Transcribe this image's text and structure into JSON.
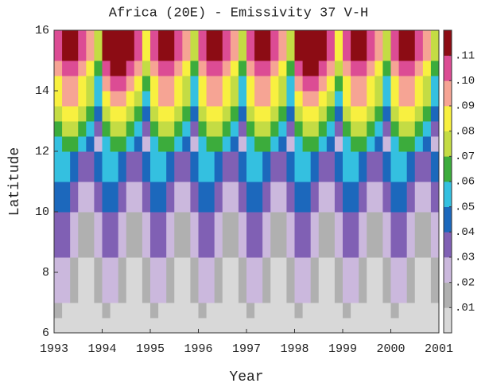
{
  "chart_data": {
    "type": "heatmap",
    "title": "Africa (20E) - Emissivity 37 V-H",
    "x_label": "Year",
    "y_label": "Latitude",
    "xlim": [
      1993,
      2001
    ],
    "ylim": [
      6,
      16
    ],
    "xticks": [
      1993,
      1994,
      1995,
      1996,
      1997,
      1998,
      1999,
      2000,
      2001
    ],
    "yticks": [
      6,
      8,
      10,
      12,
      14,
      16
    ],
    "levels": [
      0,
      0.01,
      0.02,
      0.03,
      0.04,
      0.05,
      0.06,
      0.07,
      0.08,
      0.09,
      0.1,
      0.11,
      0.12
    ],
    "colors": [
      "#d8d8d8",
      "#b0b0b0",
      "#cbb8dd",
      "#8060b4",
      "#1c68bc",
      "#34c0e0",
      "#3cac3c",
      "#c4dc44",
      "#f8f040",
      "#f6a494",
      "#dc4c94",
      "#8c0c14"
    ],
    "colorbar_ticks": [
      {
        "value": 0.01,
        "label": ".01"
      },
      {
        "value": 0.02,
        "label": ".02"
      },
      {
        "value": 0.03,
        "label": ".03"
      },
      {
        "value": 0.04,
        "label": ".04"
      },
      {
        "value": 0.05,
        "label": ".05"
      },
      {
        "value": 0.06,
        "label": ".06"
      },
      {
        "value": 0.07,
        "label": ".07"
      },
      {
        "value": 0.08,
        "label": ".08"
      },
      {
        "value": 0.09,
        "label": ".09"
      },
      {
        "value": 0.1,
        "label": ".10"
      },
      {
        "value": 0.11,
        "label": ".11"
      }
    ],
    "z": [
      [
        0.005,
        0.005,
        0.005,
        0.005,
        0.005,
        0.005,
        0.005,
        0.005,
        0.005,
        0.005,
        0.005,
        0.005,
        0.005,
        0.005,
        0.005,
        0.005,
        0.005,
        0.005,
        0.005,
        0.005,
        0.005,
        0.005,
        0.005,
        0.005,
        0.005,
        0.005,
        0.005,
        0.005,
        0.005,
        0.005,
        0.005,
        0.005,
        0.005,
        0.005,
        0.005,
        0.005,
        0.005,
        0.005,
        0.005,
        0.005,
        0.005,
        0.005,
        0.005,
        0.005,
        0.005,
        0.005,
        0.005,
        0.005
      ],
      [
        0.015,
        0.005,
        0.005,
        0.005,
        0.005,
        0.005,
        0.015,
        0.005,
        0.005,
        0.005,
        0.005,
        0.005,
        0.015,
        0.005,
        0.005,
        0.005,
        0.005,
        0.005,
        0.015,
        0.005,
        0.005,
        0.005,
        0.005,
        0.005,
        0.015,
        0.005,
        0.005,
        0.005,
        0.005,
        0.005,
        0.015,
        0.005,
        0.005,
        0.005,
        0.005,
        0.005,
        0.015,
        0.005,
        0.005,
        0.005,
        0.005,
        0.005,
        0.015,
        0.005,
        0.005,
        0.005,
        0.005,
        0.005
      ],
      [
        0.025,
        0.025,
        0.015,
        0.005,
        0.005,
        0.015,
        0.025,
        0.025,
        0.015,
        0.005,
        0.005,
        0.015,
        0.025,
        0.025,
        0.015,
        0.005,
        0.005,
        0.015,
        0.025,
        0.025,
        0.015,
        0.005,
        0.005,
        0.015,
        0.025,
        0.025,
        0.015,
        0.005,
        0.005,
        0.015,
        0.025,
        0.025,
        0.015,
        0.005,
        0.005,
        0.015,
        0.025,
        0.025,
        0.015,
        0.005,
        0.005,
        0.015,
        0.025,
        0.025,
        0.015,
        0.005,
        0.005,
        0.015
      ],
      [
        0.025,
        0.025,
        0.015,
        0.005,
        0.005,
        0.015,
        0.025,
        0.025,
        0.015,
        0.005,
        0.005,
        0.015,
        0.025,
        0.025,
        0.015,
        0.005,
        0.005,
        0.015,
        0.025,
        0.025,
        0.015,
        0.005,
        0.005,
        0.015,
        0.025,
        0.025,
        0.015,
        0.005,
        0.005,
        0.015,
        0.025,
        0.025,
        0.015,
        0.005,
        0.005,
        0.015,
        0.025,
        0.025,
        0.015,
        0.005,
        0.005,
        0.015,
        0.025,
        0.025,
        0.015,
        0.005,
        0.005,
        0.015
      ],
      [
        0.025,
        0.025,
        0.015,
        0.005,
        0.005,
        0.015,
        0.025,
        0.025,
        0.015,
        0.005,
        0.005,
        0.015,
        0.025,
        0.025,
        0.015,
        0.005,
        0.005,
        0.015,
        0.025,
        0.025,
        0.015,
        0.005,
        0.005,
        0.015,
        0.025,
        0.025,
        0.015,
        0.005,
        0.005,
        0.015,
        0.025,
        0.025,
        0.015,
        0.005,
        0.005,
        0.015,
        0.025,
        0.025,
        0.015,
        0.005,
        0.005,
        0.015,
        0.025,
        0.025,
        0.015,
        0.005,
        0.005,
        0.015
      ],
      [
        0.035,
        0.035,
        0.025,
        0.015,
        0.015,
        0.025,
        0.035,
        0.035,
        0.025,
        0.015,
        0.015,
        0.025,
        0.035,
        0.035,
        0.025,
        0.015,
        0.015,
        0.025,
        0.035,
        0.035,
        0.025,
        0.015,
        0.015,
        0.025,
        0.035,
        0.035,
        0.025,
        0.015,
        0.015,
        0.025,
        0.035,
        0.035,
        0.025,
        0.015,
        0.015,
        0.025,
        0.035,
        0.035,
        0.025,
        0.015,
        0.015,
        0.025,
        0.035,
        0.035,
        0.025,
        0.015,
        0.015,
        0.025
      ],
      [
        0.035,
        0.035,
        0.025,
        0.015,
        0.015,
        0.025,
        0.035,
        0.035,
        0.025,
        0.015,
        0.015,
        0.025,
        0.035,
        0.035,
        0.025,
        0.015,
        0.015,
        0.025,
        0.035,
        0.035,
        0.025,
        0.015,
        0.015,
        0.025,
        0.035,
        0.035,
        0.025,
        0.015,
        0.015,
        0.025,
        0.035,
        0.035,
        0.025,
        0.015,
        0.015,
        0.025,
        0.035,
        0.035,
        0.025,
        0.015,
        0.015,
        0.025,
        0.035,
        0.035,
        0.025,
        0.015,
        0.015,
        0.025
      ],
      [
        0.035,
        0.035,
        0.025,
        0.015,
        0.015,
        0.025,
        0.035,
        0.035,
        0.025,
        0.015,
        0.015,
        0.025,
        0.035,
        0.035,
        0.025,
        0.015,
        0.015,
        0.025,
        0.035,
        0.035,
        0.025,
        0.015,
        0.015,
        0.025,
        0.035,
        0.035,
        0.025,
        0.015,
        0.015,
        0.025,
        0.035,
        0.035,
        0.025,
        0.015,
        0.015,
        0.025,
        0.035,
        0.035,
        0.025,
        0.015,
        0.015,
        0.025,
        0.035,
        0.035,
        0.025,
        0.015,
        0.015,
        0.025
      ],
      [
        0.045,
        0.045,
        0.035,
        0.025,
        0.025,
        0.035,
        0.045,
        0.045,
        0.035,
        0.025,
        0.025,
        0.035,
        0.045,
        0.045,
        0.035,
        0.025,
        0.025,
        0.035,
        0.045,
        0.045,
        0.035,
        0.025,
        0.025,
        0.035,
        0.045,
        0.045,
        0.035,
        0.025,
        0.025,
        0.035,
        0.045,
        0.045,
        0.035,
        0.025,
        0.025,
        0.035,
        0.045,
        0.045,
        0.035,
        0.025,
        0.025,
        0.035,
        0.045,
        0.045,
        0.035,
        0.025,
        0.025,
        0.035
      ],
      [
        0.045,
        0.045,
        0.035,
        0.025,
        0.025,
        0.035,
        0.045,
        0.045,
        0.035,
        0.025,
        0.025,
        0.035,
        0.045,
        0.045,
        0.035,
        0.025,
        0.025,
        0.035,
        0.045,
        0.045,
        0.035,
        0.025,
        0.025,
        0.035,
        0.045,
        0.045,
        0.035,
        0.025,
        0.025,
        0.035,
        0.045,
        0.045,
        0.035,
        0.025,
        0.025,
        0.035,
        0.045,
        0.045,
        0.035,
        0.025,
        0.025,
        0.035,
        0.045,
        0.045,
        0.035,
        0.025,
        0.025,
        0.035
      ],
      [
        0.055,
        0.055,
        0.045,
        0.035,
        0.035,
        0.045,
        0.055,
        0.055,
        0.045,
        0.035,
        0.035,
        0.045,
        0.055,
        0.055,
        0.045,
        0.035,
        0.035,
        0.045,
        0.055,
        0.055,
        0.045,
        0.035,
        0.035,
        0.045,
        0.055,
        0.055,
        0.045,
        0.035,
        0.035,
        0.045,
        0.055,
        0.055,
        0.045,
        0.035,
        0.035,
        0.045,
        0.055,
        0.055,
        0.045,
        0.035,
        0.035,
        0.045,
        0.055,
        0.055,
        0.045,
        0.035,
        0.035,
        0.045
      ],
      [
        0.055,
        0.055,
        0.045,
        0.035,
        0.035,
        0.045,
        0.055,
        0.055,
        0.045,
        0.035,
        0.035,
        0.045,
        0.055,
        0.055,
        0.045,
        0.035,
        0.035,
        0.045,
        0.055,
        0.055,
        0.045,
        0.035,
        0.035,
        0.045,
        0.055,
        0.055,
        0.045,
        0.035,
        0.035,
        0.045,
        0.055,
        0.055,
        0.045,
        0.035,
        0.035,
        0.045,
        0.055,
        0.055,
        0.045,
        0.035,
        0.035,
        0.045,
        0.055,
        0.055,
        0.045,
        0.035,
        0.035,
        0.045
      ],
      [
        0.055,
        0.065,
        0.065,
        0.055,
        0.045,
        0.025,
        0.055,
        0.065,
        0.065,
        0.055,
        0.045,
        0.025,
        0.055,
        0.065,
        0.065,
        0.055,
        0.045,
        0.025,
        0.055,
        0.065,
        0.065,
        0.055,
        0.045,
        0.025,
        0.055,
        0.065,
        0.065,
        0.055,
        0.045,
        0.025,
        0.055,
        0.065,
        0.065,
        0.055,
        0.045,
        0.025,
        0.055,
        0.065,
        0.065,
        0.055,
        0.045,
        0.025,
        0.055,
        0.065,
        0.065,
        0.055,
        0.045,
        0.025
      ],
      [
        0.065,
        0.075,
        0.075,
        0.065,
        0.055,
        0.035,
        0.065,
        0.075,
        0.075,
        0.065,
        0.055,
        0.035,
        0.065,
        0.075,
        0.075,
        0.065,
        0.055,
        0.035,
        0.065,
        0.075,
        0.075,
        0.065,
        0.055,
        0.035,
        0.065,
        0.075,
        0.075,
        0.065,
        0.055,
        0.035,
        0.065,
        0.075,
        0.075,
        0.065,
        0.055,
        0.035,
        0.065,
        0.075,
        0.075,
        0.065,
        0.055,
        0.035,
        0.065,
        0.075,
        0.075,
        0.065,
        0.055,
        0.035
      ],
      [
        0.075,
        0.085,
        0.085,
        0.075,
        0.065,
        0.045,
        0.075,
        0.085,
        0.085,
        0.075,
        0.065,
        0.045,
        0.075,
        0.085,
        0.085,
        0.075,
        0.065,
        0.045,
        0.075,
        0.085,
        0.085,
        0.075,
        0.065,
        0.045,
        0.075,
        0.085,
        0.085,
        0.075,
        0.065,
        0.045,
        0.075,
        0.085,
        0.085,
        0.075,
        0.065,
        0.045,
        0.075,
        0.085,
        0.085,
        0.075,
        0.065,
        0.045,
        0.075,
        0.085,
        0.085,
        0.075,
        0.065,
        0.045
      ],
      [
        0.085,
        0.095,
        0.095,
        0.085,
        0.075,
        0.055,
        0.085,
        0.095,
        0.095,
        0.085,
        0.075,
        0.055,
        0.085,
        0.095,
        0.095,
        0.085,
        0.075,
        0.055,
        0.085,
        0.095,
        0.095,
        0.085,
        0.075,
        0.055,
        0.085,
        0.095,
        0.095,
        0.085,
        0.075,
        0.055,
        0.085,
        0.095,
        0.095,
        0.085,
        0.075,
        0.055,
        0.085,
        0.095,
        0.095,
        0.085,
        0.075,
        0.055,
        0.085,
        0.095,
        0.095,
        0.085,
        0.075,
        0.055
      ],
      [
        0.085,
        0.095,
        0.095,
        0.085,
        0.075,
        0.055,
        0.095,
        0.105,
        0.105,
        0.095,
        0.085,
        0.065,
        0.085,
        0.095,
        0.095,
        0.085,
        0.075,
        0.055,
        0.085,
        0.095,
        0.095,
        0.085,
        0.075,
        0.055,
        0.085,
        0.095,
        0.095,
        0.085,
        0.075,
        0.055,
        0.095,
        0.105,
        0.105,
        0.095,
        0.085,
        0.065,
        0.085,
        0.095,
        0.095,
        0.085,
        0.075,
        0.055,
        0.085,
        0.095,
        0.095,
        0.085,
        0.075,
        0.055
      ],
      [
        0.095,
        0.105,
        0.105,
        0.095,
        0.085,
        0.065,
        0.105,
        0.115,
        0.115,
        0.105,
        0.095,
        0.075,
        0.095,
        0.105,
        0.105,
        0.095,
        0.085,
        0.065,
        0.095,
        0.105,
        0.105,
        0.095,
        0.085,
        0.065,
        0.095,
        0.105,
        0.105,
        0.095,
        0.085,
        0.065,
        0.105,
        0.115,
        0.115,
        0.105,
        0.095,
        0.075,
        0.095,
        0.105,
        0.105,
        0.095,
        0.085,
        0.065,
        0.095,
        0.105,
        0.105,
        0.095,
        0.085,
        0.065
      ],
      [
        0.105,
        0.115,
        0.115,
        0.105,
        0.095,
        0.075,
        0.115,
        0.115,
        0.115,
        0.115,
        0.105,
        0.085,
        0.105,
        0.115,
        0.115,
        0.105,
        0.095,
        0.075,
        0.105,
        0.115,
        0.115,
        0.105,
        0.095,
        0.075,
        0.105,
        0.115,
        0.115,
        0.105,
        0.095,
        0.075,
        0.115,
        0.115,
        0.115,
        0.115,
        0.105,
        0.085,
        0.105,
        0.115,
        0.115,
        0.105,
        0.095,
        0.075,
        0.105,
        0.115,
        0.115,
        0.105,
        0.095,
        0.075
      ],
      [
        0.105,
        0.115,
        0.115,
        0.105,
        0.095,
        0.075,
        0.115,
        0.115,
        0.115,
        0.115,
        0.105,
        0.085,
        0.105,
        0.115,
        0.115,
        0.105,
        0.095,
        0.075,
        0.105,
        0.115,
        0.115,
        0.105,
        0.095,
        0.075,
        0.105,
        0.115,
        0.115,
        0.105,
        0.095,
        0.075,
        0.115,
        0.115,
        0.115,
        0.115,
        0.105,
        0.085,
        0.105,
        0.115,
        0.115,
        0.105,
        0.095,
        0.075,
        0.105,
        0.115,
        0.115,
        0.105,
        0.095,
        0.075
      ]
    ]
  }
}
